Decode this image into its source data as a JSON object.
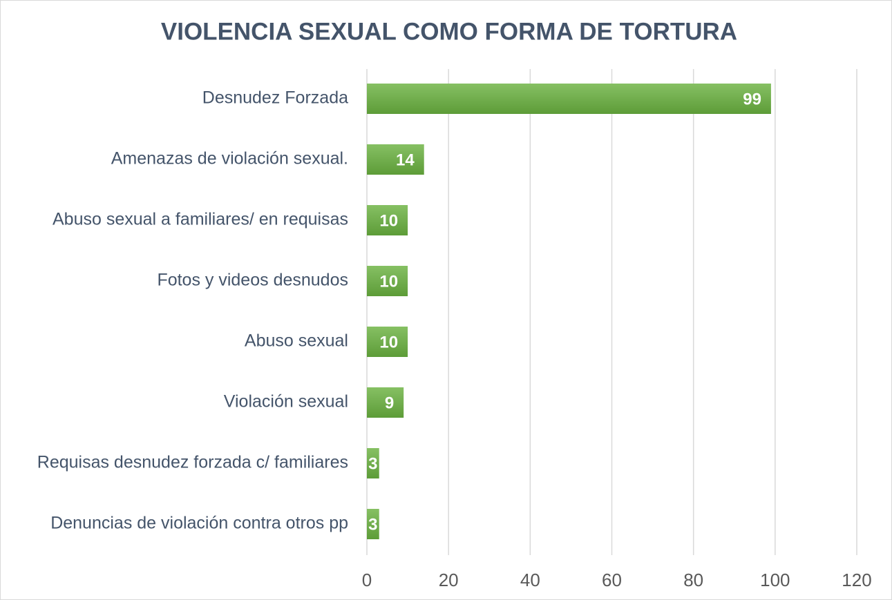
{
  "chart_data": {
    "type": "barh",
    "title": "VIOLENCIA SEXUAL COMO FORMA DE TORTURA",
    "categories": [
      "Desnudez Forzada",
      "Amenazas de violación sexual.",
      "Abuso sexual a familiares/ en requisas",
      "Fotos y videos desnudos",
      "Abuso sexual",
      "Violación sexual",
      "Requisas desnudez forzada c/ familiares",
      "Denuncias de violación contra otros pp"
    ],
    "values": [
      99,
      14,
      10,
      10,
      10,
      9,
      3,
      3
    ],
    "color": "#70ad47",
    "xlim": [
      0,
      120
    ],
    "xticks": [
      0,
      20,
      40,
      60,
      80,
      100,
      120
    ],
    "grid": true
  }
}
